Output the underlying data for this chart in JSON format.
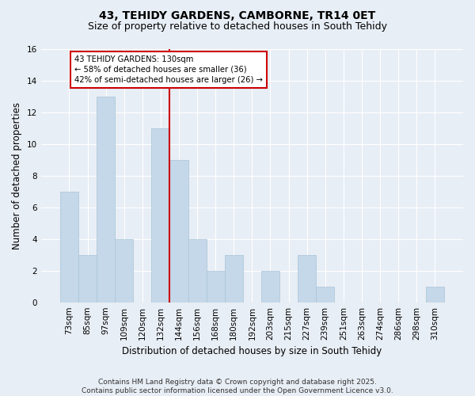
{
  "title1": "43, TEHIDY GARDENS, CAMBORNE, TR14 0ET",
  "title2": "Size of property relative to detached houses in South Tehidy",
  "xlabel": "Distribution of detached houses by size in South Tehidy",
  "ylabel": "Number of detached properties",
  "categories": [
    "73sqm",
    "85sqm",
    "97sqm",
    "109sqm",
    "120sqm",
    "132sqm",
    "144sqm",
    "156sqm",
    "168sqm",
    "180sqm",
    "192sqm",
    "203sqm",
    "215sqm",
    "227sqm",
    "239sqm",
    "251sqm",
    "263sqm",
    "274sqm",
    "286sqm",
    "298sqm",
    "310sqm"
  ],
  "values": [
    7,
    3,
    13,
    4,
    0,
    11,
    9,
    4,
    2,
    3,
    0,
    2,
    0,
    3,
    1,
    0,
    0,
    0,
    0,
    0,
    1
  ],
  "bar_color": "#c5d8ea",
  "bar_edge_color": "#a8c4d8",
  "vline_color": "#cc0000",
  "vline_index": 5,
  "annotation_text": "43 TEHIDY GARDENS: 130sqm\n← 58% of detached houses are smaller (36)\n42% of semi-detached houses are larger (26) →",
  "annotation_box_color": "#ffffff",
  "annotation_box_edge": "#cc0000",
  "ylim": [
    0,
    16
  ],
  "yticks": [
    0,
    2,
    4,
    6,
    8,
    10,
    12,
    14,
    16
  ],
  "footer": "Contains HM Land Registry data © Crown copyright and database right 2025.\nContains public sector information licensed under the Open Government Licence v3.0.",
  "bg_color": "#e8eef5",
  "plot_bg_color": "#e8eef5",
  "title_fontsize": 10,
  "subtitle_fontsize": 9,
  "axis_label_fontsize": 8.5,
  "tick_fontsize": 7.5,
  "footer_fontsize": 6.5
}
